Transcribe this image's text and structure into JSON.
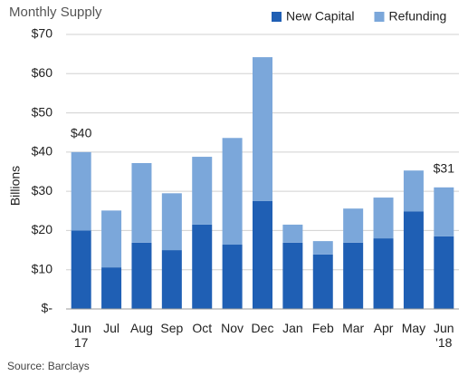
{
  "chart_data": {
    "type": "stacked_bar",
    "title": "Monthly Supply",
    "y_label": "Billions",
    "source": "Source: Barclays",
    "categories": [
      "Jun\n17",
      "Jul",
      "Aug",
      "Sep",
      "Oct",
      "Nov",
      "Dec",
      "Jan",
      "Feb",
      "Mar",
      "Apr",
      "May",
      "Jun\n'18"
    ],
    "series": [
      {
        "name": "New Capital",
        "color": "#1f5fb4",
        "values": [
          20,
          10.6,
          16.9,
          15,
          21.5,
          16.4,
          27.5,
          16.9,
          13.9,
          16.9,
          18,
          24.9,
          18.5
        ]
      },
      {
        "name": "Refunding",
        "color": "#7ba7da",
        "values": [
          20,
          14.5,
          20.3,
          14.5,
          17.3,
          27.2,
          36.7,
          4.6,
          3.4,
          8.7,
          10.4,
          10.4,
          12.5
        ]
      }
    ],
    "annotations": [
      {
        "category": 0,
        "value": 40,
        "label": "$40"
      },
      {
        "category": 12,
        "value": 31,
        "label": "$31"
      }
    ],
    "ylim": [
      0,
      70
    ],
    "yticks": [
      {
        "value": 0,
        "label": "$-"
      },
      {
        "value": 10,
        "label": "$10"
      },
      {
        "value": 20,
        "label": "$20"
      },
      {
        "value": 30,
        "label": "$30"
      },
      {
        "value": 40,
        "label": "$40"
      },
      {
        "value": 50,
        "label": "$50"
      },
      {
        "value": 60,
        "label": "$60"
      },
      {
        "value": 70,
        "label": "$70"
      }
    ],
    "grid": true,
    "legend": "top-right"
  }
}
